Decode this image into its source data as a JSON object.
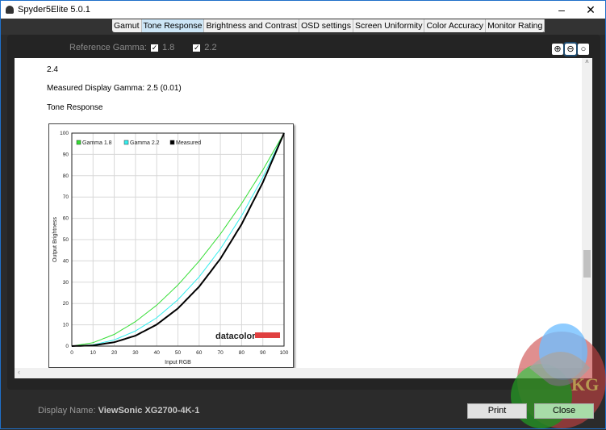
{
  "window": {
    "title": "Spyder5Elite 5.0.1",
    "minimize_icon": "minimize-icon",
    "close_icon": "close-icon"
  },
  "tabs": [
    {
      "label": "Gamut"
    },
    {
      "label": "Tone Response",
      "active": true
    },
    {
      "label": "Brightness and Contrast"
    },
    {
      "label": "OSD settings"
    },
    {
      "label": "Screen Uniformity"
    },
    {
      "label": "Color Accuracy"
    },
    {
      "label": "Monitor Rating"
    }
  ],
  "reference": {
    "label": "Reference Gamma:",
    "options": [
      {
        "label": "1.8",
        "checked": true
      },
      {
        "label": "2.2",
        "checked": true
      }
    ]
  },
  "zoom_icons": [
    "zoom-in-icon",
    "zoom-out-icon",
    "zoom-fit-icon"
  ],
  "content": {
    "line1": "2.4",
    "measured": "Measured Display Gamma: 2.5 (0.01)",
    "section": "Tone Response"
  },
  "chart_data": {
    "type": "line",
    "xlabel": "Input RGB",
    "ylabel": "Output Brightness",
    "xlim": [
      0,
      100
    ],
    "ylim": [
      0,
      100
    ],
    "xticks": [
      0,
      10,
      20,
      30,
      40,
      50,
      60,
      70,
      80,
      90,
      100
    ],
    "yticks": [
      0,
      10,
      20,
      30,
      40,
      50,
      60,
      70,
      80,
      90,
      100
    ],
    "grid": true,
    "legend": "top-left",
    "x": [
      0,
      10,
      20,
      30,
      40,
      50,
      60,
      70,
      80,
      90,
      100
    ],
    "series": [
      {
        "name": "Gamma 1.8",
        "color": "#33dd33",
        "values": [
          0,
          1.6,
          5.5,
          11.5,
          19.2,
          28.7,
          39.9,
          52.6,
          66.9,
          82.7,
          100
        ]
      },
      {
        "name": "Gamma 2.2",
        "color": "#33eeee",
        "values": [
          0,
          0.6,
          2.9,
          7.1,
          13.3,
          21.8,
          32.5,
          45.6,
          61.2,
          79.3,
          100
        ]
      },
      {
        "name": "Measured",
        "color": "#000000",
        "values": [
          0,
          0.3,
          1.8,
          4.9,
          10.1,
          17.7,
          27.9,
          41.0,
          57.2,
          76.8,
          100
        ]
      }
    ],
    "watermark": "datacolor"
  },
  "footer": {
    "display_label": "Display Name:",
    "display_value": "ViewSonic XG2700-4K-1",
    "print": "Print",
    "close": "Close"
  },
  "watermark_logo": "KG"
}
